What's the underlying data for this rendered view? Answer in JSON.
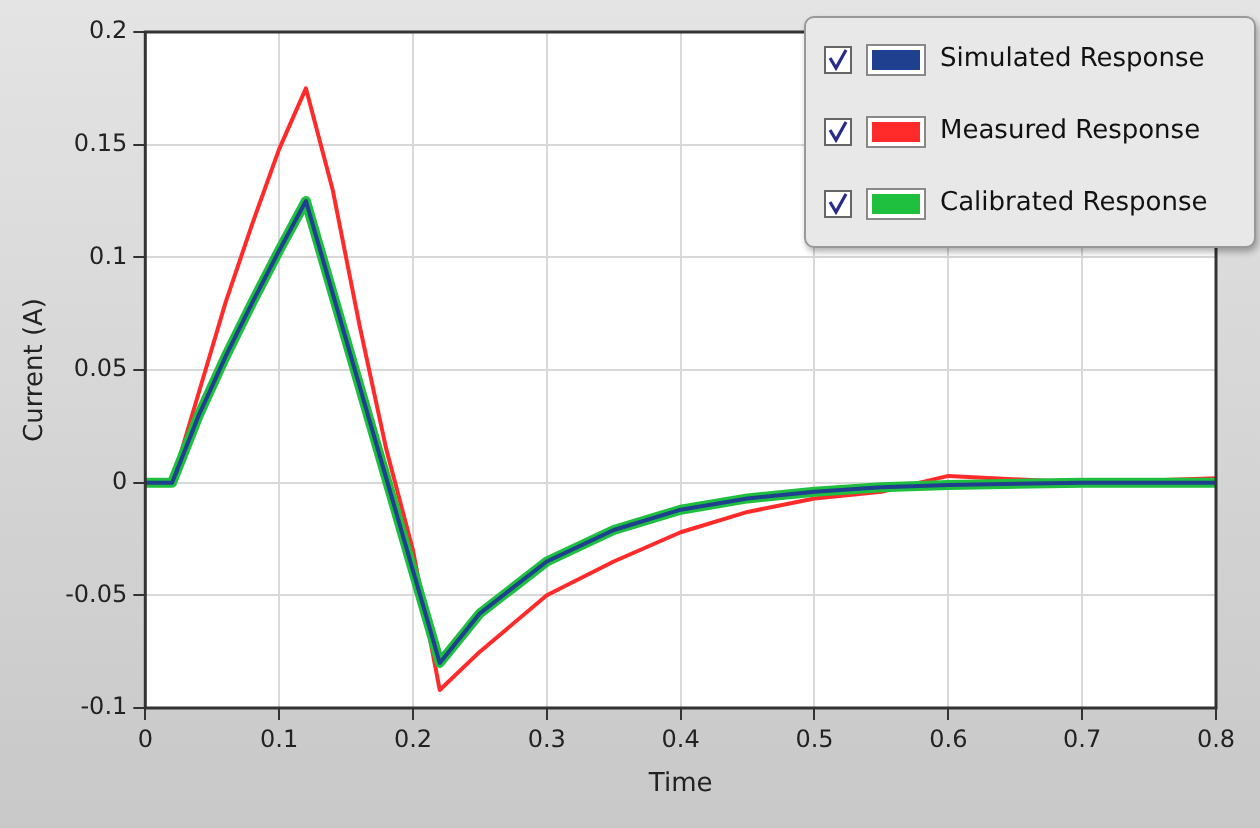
{
  "chart_data": {
    "type": "line",
    "xlabel": "Time",
    "ylabel": "Current (A)",
    "xlim": [
      0,
      0.8
    ],
    "ylim": [
      -0.1,
      0.2
    ],
    "xticks": [
      0,
      0.1,
      0.2,
      0.3,
      0.4,
      0.5,
      0.6,
      0.7,
      0.8
    ],
    "yticks": [
      -0.1,
      -0.05,
      0,
      0.05,
      0.1,
      0.15,
      0.2
    ],
    "grid": true,
    "legend": "top right",
    "marker": "none",
    "line_style": "solid",
    "x": [
      0,
      0.02,
      0.04,
      0.06,
      0.08,
      0.1,
      0.12,
      0.14,
      0.16,
      0.18,
      0.2,
      0.22,
      0.25,
      0.3,
      0.35,
      0.4,
      0.45,
      0.5,
      0.55,
      0.6,
      0.7,
      0.8
    ],
    "series": [
      {
        "name": "Simulated Response",
        "color": "#1f3f8f",
        "values": [
          0,
          0,
          0.03,
          0.056,
          0.08,
          0.103,
          0.125,
          0.084,
          0.043,
          0.002,
          -0.039,
          -0.08,
          -0.058,
          -0.035,
          -0.021,
          -0.012,
          -0.007,
          -0.004,
          -0.002,
          -0.001,
          0,
          0
        ]
      },
      {
        "name": "Measured Response",
        "color": "#ff2a2a",
        "values": [
          0,
          0,
          0.04,
          0.08,
          0.115,
          0.148,
          0.175,
          0.13,
          0.07,
          0.015,
          -0.03,
          -0.092,
          -0.075,
          -0.05,
          -0.035,
          -0.022,
          -0.013,
          -0.007,
          -0.004,
          0.003,
          0,
          0.002
        ]
      },
      {
        "name": "Calibrated Response",
        "color": "#1fbf3f",
        "values": [
          0,
          0,
          0.03,
          0.056,
          0.08,
          0.103,
          0.125,
          0.084,
          0.043,
          0.002,
          -0.039,
          -0.08,
          -0.058,
          -0.035,
          -0.021,
          -0.012,
          -0.007,
          -0.004,
          -0.002,
          -0.001,
          0,
          0
        ]
      }
    ]
  }
}
